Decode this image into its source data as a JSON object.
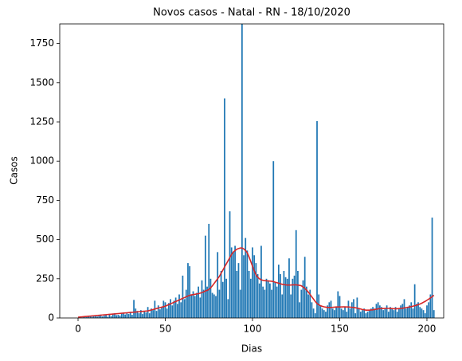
{
  "chart_data": {
    "type": "bar",
    "title": "Novos casos - Natal - RN - 18/10/2020",
    "xlabel": "Dias",
    "ylabel": "Casos",
    "x": [
      0,
      1,
      2,
      3,
      4,
      5,
      6,
      7,
      8,
      9,
      10,
      11,
      12,
      13,
      14,
      15,
      16,
      17,
      18,
      19,
      20,
      21,
      22,
      23,
      24,
      25,
      26,
      27,
      28,
      29,
      30,
      31,
      32,
      33,
      34,
      35,
      36,
      37,
      38,
      39,
      40,
      41,
      42,
      43,
      44,
      45,
      46,
      47,
      48,
      49,
      50,
      51,
      52,
      53,
      54,
      55,
      56,
      57,
      58,
      59,
      60,
      61,
      62,
      63,
      64,
      65,
      66,
      67,
      68,
      69,
      70,
      71,
      72,
      73,
      74,
      75,
      76,
      77,
      78,
      79,
      80,
      81,
      82,
      83,
      84,
      85,
      86,
      87,
      88,
      89,
      90,
      91,
      92,
      93,
      94,
      95,
      96,
      97,
      98,
      99,
      100,
      101,
      102,
      103,
      104,
      105,
      106,
      107,
      108,
      109,
      110,
      111,
      112,
      113,
      114,
      115,
      116,
      117,
      118,
      119,
      120,
      121,
      122,
      123,
      124,
      125,
      126,
      127,
      128,
      129,
      130,
      131,
      132,
      133,
      134,
      135,
      136,
      137,
      138,
      139,
      140,
      141,
      142,
      143,
      144,
      145,
      146,
      147,
      148,
      149,
      150,
      151,
      152,
      153,
      154,
      155,
      156,
      157,
      158,
      159,
      160,
      161,
      162,
      163,
      164,
      165,
      166,
      167,
      168,
      169,
      170,
      171,
      172,
      173,
      174,
      175,
      176,
      177,
      178,
      179,
      180,
      181,
      182,
      183,
      184,
      185,
      186,
      187,
      188,
      189,
      190,
      191,
      192,
      193,
      194,
      195,
      196,
      197,
      198,
      199,
      200,
      201,
      202,
      203,
      204
    ],
    "series": [
      {
        "color": "#1f77b4",
        "values": [
          0,
          5,
          3,
          8,
          10,
          6,
          12,
          15,
          8,
          10,
          12,
          9,
          14,
          18,
          10,
          15,
          20,
          8,
          22,
          12,
          25,
          30,
          18,
          20,
          15,
          28,
          35,
          22,
          30,
          25,
          40,
          20,
          115,
          60,
          45,
          30,
          50,
          25,
          40,
          35,
          70,
          30,
          60,
          50,
          110,
          45,
          80,
          55,
          70,
          110,
          100,
          60,
          95,
          120,
          80,
          110,
          130,
          90,
          150,
          100,
          270,
          120,
          180,
          350,
          330,
          150,
          170,
          140,
          160,
          200,
          130,
          240,
          180,
          525,
          200,
          600,
          250,
          160,
          150,
          140,
          420,
          180,
          300,
          230,
          1400,
          250,
          120,
          680,
          450,
          420,
          460,
          300,
          350,
          180,
          1875,
          400,
          510,
          430,
          300,
          250,
          450,
          400,
          350,
          280,
          220,
          460,
          200,
          180,
          250,
          240,
          220,
          180,
          1000,
          230,
          200,
          340,
          280,
          150,
          300,
          260,
          250,
          380,
          150,
          250,
          270,
          560,
          300,
          100,
          180,
          240,
          390,
          200,
          150,
          180,
          100,
          60,
          30,
          1255,
          150,
          80,
          60,
          50,
          40,
          80,
          100,
          110,
          60,
          50,
          70,
          170,
          140,
          60,
          50,
          70,
          40,
          110,
          60,
          100,
          120,
          30,
          130,
          60,
          40,
          50,
          60,
          30,
          40,
          50,
          60,
          70,
          60,
          90,
          100,
          80,
          70,
          50,
          60,
          80,
          40,
          70,
          60,
          50,
          70,
          40,
          60,
          80,
          90,
          120,
          60,
          70,
          80,
          100,
          60,
          215,
          90,
          100,
          70,
          60,
          50,
          30,
          80,
          100,
          150,
          640,
          50
        ]
      },
      {
        "type": "line",
        "color": "#d62728",
        "values": [
          5,
          6,
          7,
          8,
          9,
          10,
          11,
          12,
          13,
          14,
          15,
          16,
          17,
          18,
          19,
          20,
          21,
          22,
          23,
          24,
          25,
          26,
          27,
          28,
          29,
          30,
          31,
          32,
          33,
          34,
          35,
          36,
          37,
          38,
          39,
          40,
          41,
          42,
          43,
          44,
          45,
          48,
          51,
          54,
          57,
          60,
          63,
          66,
          69,
          72,
          75,
          80,
          85,
          90,
          95,
          100,
          105,
          110,
          115,
          120,
          125,
          130,
          135,
          140,
          145,
          147,
          149,
          151,
          153,
          155,
          158,
          162,
          166,
          172,
          176,
          182,
          192,
          205,
          220,
          235,
          250,
          265,
          285,
          305,
          325,
          345,
          365,
          385,
          405,
          420,
          430,
          438,
          443,
          446,
          446,
          440,
          430,
          415,
          390,
          360,
          330,
          300,
          275,
          260,
          250,
          243,
          240,
          238,
          237,
          236,
          235,
          234,
          232,
          228,
          225,
          222,
          218,
          215,
          213,
          211,
          210,
          210,
          210,
          211,
          211,
          211,
          210,
          208,
          205,
          198,
          190,
          178,
          165,
          150,
          135,
          120,
          105,
          92,
          84,
          78,
          74,
          71,
          69,
          67,
          67,
          67,
          68,
          69,
          70,
          70,
          70,
          70,
          71,
          71,
          70,
          70,
          69,
          68,
          67,
          65,
          63,
          60,
          57,
          54,
          52,
          50,
          50,
          50,
          51,
          52,
          54,
          56,
          58,
          59,
          60,
          60,
          61,
          61,
          61,
          60,
          60,
          59,
          59,
          59,
          60,
          61,
          62,
          64,
          66,
          68,
          70,
          72,
          75,
          78,
          81,
          85,
          89,
          94,
          100,
          106,
          113,
          120,
          128,
          136,
          145
        ]
      }
    ],
    "xlim": [
      -10.5,
      209.6
    ],
    "xticks": [
      0,
      50,
      100,
      150,
      200
    ],
    "ylim": [
      0,
      1875
    ],
    "yticks": [
      0,
      250,
      500,
      750,
      1000,
      1250,
      1500,
      1750
    ]
  }
}
